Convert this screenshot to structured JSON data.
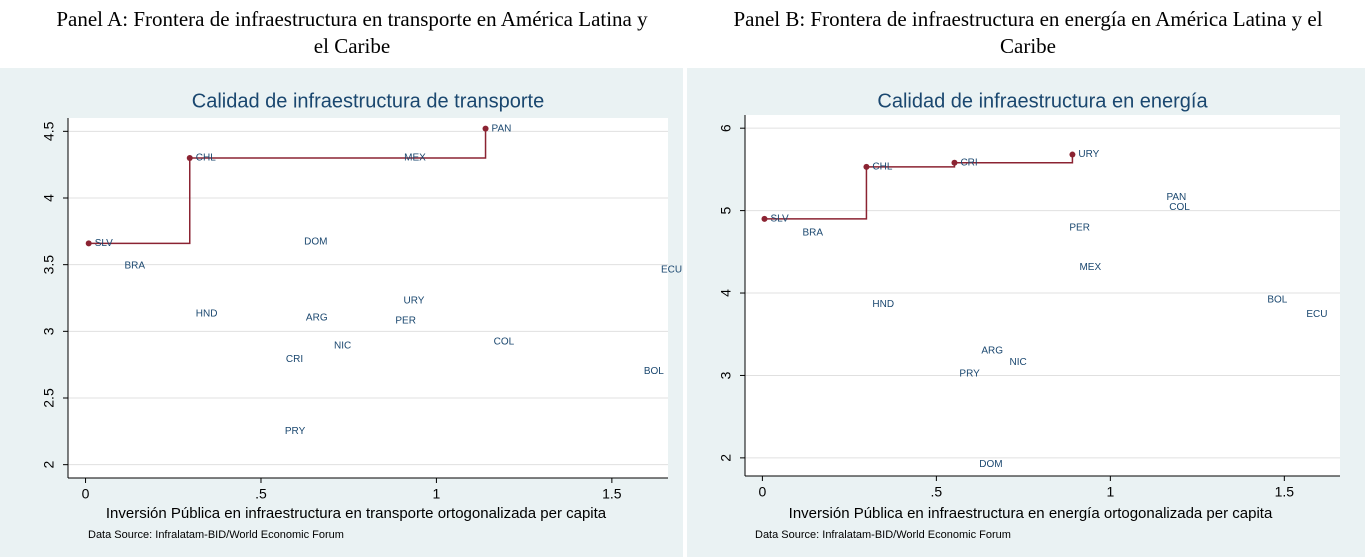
{
  "chart_data": [
    {
      "type": "scatter",
      "panel_title": "Panel A: Frontera de infraestructura en transporte en América Latina y el Caribe",
      "title": "Calidad de infraestructura de transporte",
      "x_label": "Inversión Pública en infraestructura en transporte ortogonalizada per capita",
      "note": "Data Source: Infralatam-BID/World Economic Forum",
      "labels": [
        "SLV",
        "CHL",
        "PAN",
        "MEX",
        "BRA",
        "DOM",
        "HND",
        "ARG",
        "URY",
        "PER",
        "NIC",
        "CRI",
        "COL",
        "BOL",
        "PRY",
        "ECU"
      ],
      "x": [
        0.009,
        0.297,
        1.14,
        0.891,
        0.094,
        0.606,
        0.297,
        0.611,
        0.889,
        0.866,
        0.691,
        0.554,
        1.146,
        1.574,
        0.551,
        1.623
      ],
      "y": [
        3.66,
        4.3,
        4.52,
        4.3,
        3.49,
        3.67,
        3.13,
        3.1,
        3.23,
        3.08,
        2.89,
        2.79,
        2.92,
        2.7,
        2.25,
        3.46
      ],
      "frontier": [
        true,
        true,
        true,
        false,
        false,
        false,
        false,
        false,
        false,
        false,
        false,
        false,
        false,
        false,
        false,
        false
      ],
      "frontier_color": "#8b2332",
      "label_color": "#1a476f",
      "xlim": [
        -0.05,
        1.66
      ],
      "ylim": [
        1.9,
        4.6
      ],
      "xticks": [
        0,
        {
          "value": 0.5,
          "label": ".5"
        },
        1,
        1.5
      ],
      "yticks": [
        2,
        2.5,
        3,
        3.5,
        4,
        4.5
      ],
      "grid": true
    },
    {
      "type": "scatter",
      "panel_title": "Panel B: Frontera de infraestructura en energía en América Latina y el Caribe",
      "title": "Calidad de infraestructura en energía",
      "x_label": "Inversión Pública en infraestructura en energía ortogonalizada per capita",
      "note": "Data Source: Infralatam-BID/World Economic Forum",
      "labels": [
        "SLV",
        "CHL",
        "CRI",
        "URY",
        "BRA",
        "PER",
        "PAN",
        "COL",
        "MEX",
        "HND",
        "BOL",
        "ECU",
        "ARG",
        "NIC",
        "PRY",
        "DOM"
      ],
      "x": [
        0.006,
        0.299,
        0.552,
        0.891,
        0.098,
        0.865,
        1.144,
        1.152,
        0.894,
        0.299,
        1.434,
        1.546,
        0.612,
        0.693,
        0.549,
        0.606
      ],
      "y": [
        4.9,
        5.53,
        5.58,
        5.68,
        4.73,
        4.79,
        5.16,
        5.04,
        4.31,
        3.86,
        3.92,
        3.74,
        3.3,
        3.16,
        3.02,
        1.92
      ],
      "frontier": [
        true,
        true,
        true,
        true,
        false,
        false,
        false,
        false,
        false,
        false,
        false,
        false,
        false,
        false,
        false,
        false
      ],
      "frontier_color": "#8b2332",
      "label_color": "#1a476f",
      "xlim": [
        -0.05,
        1.66
      ],
      "ylim": [
        1.78,
        6.16
      ],
      "xticks": [
        0,
        {
          "value": 0.5,
          "label": ".5"
        },
        1,
        1.5
      ],
      "yticks": [
        2,
        3,
        4,
        5,
        6
      ],
      "grid": true
    }
  ]
}
